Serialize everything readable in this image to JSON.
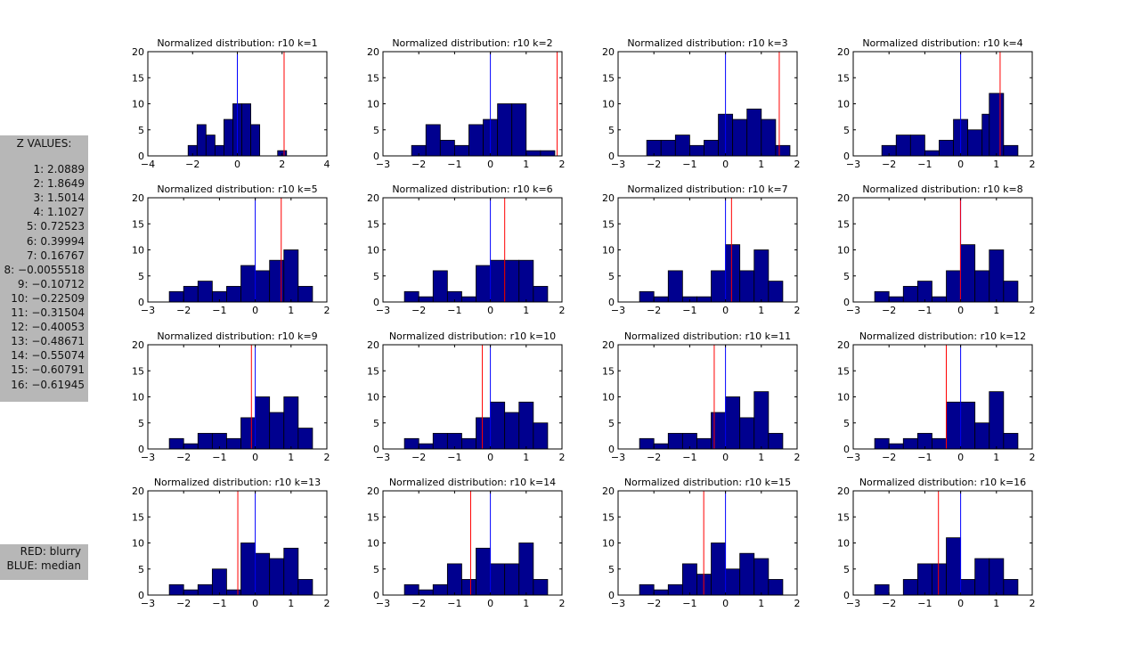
{
  "z_panel": {
    "title": "Z VALUES:",
    "items": [
      "1: 2.0889",
      "2: 1.8649",
      "3: 1.5014",
      "4: 1.1027",
      "5: 0.72523",
      "6: 0.39994",
      "7: 0.16767",
      "8: −0.0055518",
      "9: −0.10712",
      "10: −0.22509",
      "11: −0.31504",
      "12: −0.40053",
      "13: −0.48671",
      "14: −0.55074",
      "15: −0.60791",
      "16: −0.61945"
    ]
  },
  "legend": {
    "red": "RED: blurry",
    "blue": "BLUE: median"
  },
  "colors": {
    "bar": "#00008f",
    "blurry": "#ff0000",
    "median": "#0000ff",
    "axis": "#000000"
  },
  "chart_data": [
    {
      "type": "bar",
      "title": "Normalized distribution: r10 k=1",
      "xlim": [
        -4,
        4
      ],
      "ylim": [
        0,
        20
      ],
      "xticks": [
        -4,
        -2,
        0,
        2,
        4
      ],
      "yticks": [
        0,
        5,
        10,
        15,
        20
      ],
      "bin_width": 0.4,
      "bins": [
        {
          "x": -2.2,
          "y": 2
        },
        {
          "x": -1.8,
          "y": 6
        },
        {
          "x": -1.4,
          "y": 4
        },
        {
          "x": -1.0,
          "y": 2
        },
        {
          "x": -0.6,
          "y": 7
        },
        {
          "x": -0.2,
          "y": 10
        },
        {
          "x": 0.2,
          "y": 10
        },
        {
          "x": 0.6,
          "y": 6
        },
        {
          "x": 1.8,
          "y": 1
        }
      ],
      "blurry": 2.0889,
      "median": 0
    },
    {
      "type": "bar",
      "title": "Normalized distribution: r10 k=2",
      "xlim": [
        -3,
        2
      ],
      "ylim": [
        0,
        20
      ],
      "xticks": [
        -3,
        -2,
        -1,
        0,
        1,
        2
      ],
      "yticks": [
        0,
        5,
        10,
        15,
        20
      ],
      "bin_width": 0.4,
      "bins": [
        {
          "x": -2.2,
          "y": 2
        },
        {
          "x": -1.8,
          "y": 6
        },
        {
          "x": -1.4,
          "y": 3
        },
        {
          "x": -1.0,
          "y": 2
        },
        {
          "x": -0.6,
          "y": 6
        },
        {
          "x": -0.2,
          "y": 7
        },
        {
          "x": 0.2,
          "y": 10
        },
        {
          "x": 0.6,
          "y": 10
        },
        {
          "x": 1.0,
          "y": 1
        },
        {
          "x": 1.4,
          "y": 1
        }
      ],
      "blurry": 1.8649,
      "median": 0
    },
    {
      "type": "bar",
      "title": "Normalized distribution: r10 k=3",
      "xlim": [
        -3,
        2
      ],
      "ylim": [
        0,
        20
      ],
      "xticks": [
        -3,
        -2,
        -1,
        0,
        1,
        2
      ],
      "yticks": [
        0,
        5,
        10,
        15,
        20
      ],
      "bin_width": 0.4,
      "bins": [
        {
          "x": -2.2,
          "y": 3
        },
        {
          "x": -1.8,
          "y": 3
        },
        {
          "x": -1.4,
          "y": 4
        },
        {
          "x": -1.0,
          "y": 2
        },
        {
          "x": -0.6,
          "y": 3
        },
        {
          "x": -0.2,
          "y": 8
        },
        {
          "x": 0.2,
          "y": 7
        },
        {
          "x": 0.6,
          "y": 9
        },
        {
          "x": 1.0,
          "y": 7
        },
        {
          "x": 1.4,
          "y": 2
        }
      ],
      "blurry": 1.5014,
      "median": 0
    },
    {
      "type": "bar",
      "title": "Normalized distribution: r10 k=4",
      "xlim": [
        -3,
        2
      ],
      "ylim": [
        0,
        20
      ],
      "xticks": [
        -3,
        -2,
        -1,
        0,
        1,
        2
      ],
      "yticks": [
        0,
        5,
        10,
        15,
        20
      ],
      "bin_width": 0.4,
      "bins": [
        {
          "x": -2.2,
          "y": 2
        },
        {
          "x": -1.8,
          "y": 4
        },
        {
          "x": -1.4,
          "y": 4
        },
        {
          "x": -1.0,
          "y": 1
        },
        {
          "x": -0.6,
          "y": 3
        },
        {
          "x": -0.2,
          "y": 7
        },
        {
          "x": 0.2,
          "y": 5
        },
        {
          "x": 0.6,
          "y": 8
        },
        {
          "x": 0.8,
          "y": 12,
          "w": 0.4
        },
        {
          "x": 1.2,
          "y": 2
        }
      ],
      "blurry": 1.1027,
      "median": 0
    },
    {
      "type": "bar",
      "title": "Normalized distribution: r10 k=5",
      "xlim": [
        -3,
        2
      ],
      "ylim": [
        0,
        20
      ],
      "xticks": [
        -3,
        -2,
        -1,
        0,
        1,
        2
      ],
      "yticks": [
        0,
        5,
        10,
        15,
        20
      ],
      "bin_width": 0.4,
      "bins": [
        {
          "x": -2.4,
          "y": 2
        },
        {
          "x": -2.0,
          "y": 3
        },
        {
          "x": -1.6,
          "y": 4
        },
        {
          "x": -1.2,
          "y": 2
        },
        {
          "x": -0.8,
          "y": 3
        },
        {
          "x": -0.4,
          "y": 7
        },
        {
          "x": 0.0,
          "y": 6
        },
        {
          "x": 0.4,
          "y": 8
        },
        {
          "x": 0.8,
          "y": 10
        },
        {
          "x": 1.2,
          "y": 3
        }
      ],
      "blurry": 0.72523,
      "median": 0
    },
    {
      "type": "bar",
      "title": "Normalized distribution: r10 k=6",
      "xlim": [
        -3,
        2
      ],
      "ylim": [
        0,
        20
      ],
      "xticks": [
        -3,
        -2,
        -1,
        0,
        1,
        2
      ],
      "yticks": [
        0,
        5,
        10,
        15,
        20
      ],
      "bin_width": 0.4,
      "bins": [
        {
          "x": -2.4,
          "y": 2
        },
        {
          "x": -2.0,
          "y": 1
        },
        {
          "x": -1.6,
          "y": 6
        },
        {
          "x": -1.2,
          "y": 2
        },
        {
          "x": -0.8,
          "y": 1
        },
        {
          "x": -0.4,
          "y": 7
        },
        {
          "x": 0.0,
          "y": 8
        },
        {
          "x": 0.4,
          "y": 8
        },
        {
          "x": 0.8,
          "y": 8
        },
        {
          "x": 1.2,
          "y": 3
        }
      ],
      "blurry": 0.39994,
      "median": 0
    },
    {
      "type": "bar",
      "title": "Normalized distribution: r10 k=7",
      "xlim": [
        -3,
        2
      ],
      "ylim": [
        0,
        20
      ],
      "xticks": [
        -3,
        -2,
        -1,
        0,
        1,
        2
      ],
      "yticks": [
        0,
        5,
        10,
        15,
        20
      ],
      "bin_width": 0.4,
      "bins": [
        {
          "x": -2.4,
          "y": 2
        },
        {
          "x": -2.0,
          "y": 1
        },
        {
          "x": -1.6,
          "y": 6
        },
        {
          "x": -1.2,
          "y": 1
        },
        {
          "x": -0.8,
          "y": 1
        },
        {
          "x": -0.4,
          "y": 6
        },
        {
          "x": 0.0,
          "y": 11
        },
        {
          "x": 0.4,
          "y": 6
        },
        {
          "x": 0.8,
          "y": 10
        },
        {
          "x": 1.2,
          "y": 4
        }
      ],
      "blurry": 0.16767,
      "median": 0
    },
    {
      "type": "bar",
      "title": "Normalized distribution: r10 k=8",
      "xlim": [
        -3,
        2
      ],
      "ylim": [
        0,
        20
      ],
      "xticks": [
        -3,
        -2,
        -1,
        0,
        1,
        2
      ],
      "yticks": [
        0,
        5,
        10,
        15,
        20
      ],
      "bin_width": 0.4,
      "bins": [
        {
          "x": -2.4,
          "y": 2
        },
        {
          "x": -2.0,
          "y": 1
        },
        {
          "x": -1.6,
          "y": 3
        },
        {
          "x": -1.2,
          "y": 4
        },
        {
          "x": -0.8,
          "y": 1
        },
        {
          "x": -0.4,
          "y": 6
        },
        {
          "x": 0.0,
          "y": 11
        },
        {
          "x": 0.4,
          "y": 6
        },
        {
          "x": 0.8,
          "y": 10
        },
        {
          "x": 1.2,
          "y": 4
        }
      ],
      "blurry": -0.0055518,
      "median": 0
    },
    {
      "type": "bar",
      "title": "Normalized distribution: r10 k=9",
      "xlim": [
        -3,
        2
      ],
      "ylim": [
        0,
        20
      ],
      "xticks": [
        -3,
        -2,
        -1,
        0,
        1,
        2
      ],
      "yticks": [
        0,
        5,
        10,
        15,
        20
      ],
      "bin_width": 0.4,
      "bins": [
        {
          "x": -2.4,
          "y": 2
        },
        {
          "x": -2.0,
          "y": 1
        },
        {
          "x": -1.6,
          "y": 3
        },
        {
          "x": -1.2,
          "y": 3
        },
        {
          "x": -0.8,
          "y": 2
        },
        {
          "x": -0.4,
          "y": 6
        },
        {
          "x": 0.0,
          "y": 10
        },
        {
          "x": 0.4,
          "y": 7
        },
        {
          "x": 0.8,
          "y": 10
        },
        {
          "x": 1.2,
          "y": 4
        }
      ],
      "blurry": -0.10712,
      "median": 0
    },
    {
      "type": "bar",
      "title": "Normalized distribution: r10 k=10",
      "xlim": [
        -3,
        2
      ],
      "ylim": [
        0,
        20
      ],
      "xticks": [
        -3,
        -2,
        -1,
        0,
        1,
        2
      ],
      "yticks": [
        0,
        5,
        10,
        15,
        20
      ],
      "bin_width": 0.4,
      "bins": [
        {
          "x": -2.4,
          "y": 2
        },
        {
          "x": -2.0,
          "y": 1
        },
        {
          "x": -1.6,
          "y": 3
        },
        {
          "x": -1.2,
          "y": 3
        },
        {
          "x": -0.8,
          "y": 2
        },
        {
          "x": -0.4,
          "y": 6
        },
        {
          "x": 0.0,
          "y": 9
        },
        {
          "x": 0.4,
          "y": 7
        },
        {
          "x": 0.8,
          "y": 9
        },
        {
          "x": 1.2,
          "y": 5
        }
      ],
      "blurry": -0.22509,
      "median": 0
    },
    {
      "type": "bar",
      "title": "Normalized distribution: r10 k=11",
      "xlim": [
        -3,
        2
      ],
      "ylim": [
        0,
        20
      ],
      "xticks": [
        -3,
        -2,
        -1,
        0,
        1,
        2
      ],
      "yticks": [
        0,
        5,
        10,
        15,
        20
      ],
      "bin_width": 0.4,
      "bins": [
        {
          "x": -2.4,
          "y": 2
        },
        {
          "x": -2.0,
          "y": 1
        },
        {
          "x": -1.6,
          "y": 3
        },
        {
          "x": -1.2,
          "y": 3
        },
        {
          "x": -0.8,
          "y": 2
        },
        {
          "x": -0.4,
          "y": 7
        },
        {
          "x": 0.0,
          "y": 10
        },
        {
          "x": 0.4,
          "y": 6
        },
        {
          "x": 0.8,
          "y": 11
        },
        {
          "x": 1.2,
          "y": 3
        }
      ],
      "blurry": -0.31504,
      "median": 0
    },
    {
      "type": "bar",
      "title": "Normalized distribution: r10 k=12",
      "xlim": [
        -3,
        2
      ],
      "ylim": [
        0,
        20
      ],
      "xticks": [
        -3,
        -2,
        -1,
        0,
        1,
        2
      ],
      "yticks": [
        0,
        5,
        10,
        15,
        20
      ],
      "bin_width": 0.4,
      "bins": [
        {
          "x": -2.4,
          "y": 2
        },
        {
          "x": -2.0,
          "y": 1
        },
        {
          "x": -1.6,
          "y": 2
        },
        {
          "x": -1.2,
          "y": 3
        },
        {
          "x": -0.8,
          "y": 2
        },
        {
          "x": -0.4,
          "y": 9
        },
        {
          "x": 0.0,
          "y": 9
        },
        {
          "x": 0.4,
          "y": 5
        },
        {
          "x": 0.8,
          "y": 11
        },
        {
          "x": 1.2,
          "y": 3
        }
      ],
      "blurry": -0.40053,
      "median": 0
    },
    {
      "type": "bar",
      "title": "Normalized distribution: r10 k=13",
      "xlim": [
        -3,
        2
      ],
      "ylim": [
        0,
        20
      ],
      "xticks": [
        -3,
        -2,
        -1,
        0,
        1,
        2
      ],
      "yticks": [
        0,
        5,
        10,
        15,
        20
      ],
      "bin_width": 0.4,
      "bins": [
        {
          "x": -2.4,
          "y": 2
        },
        {
          "x": -2.0,
          "y": 1
        },
        {
          "x": -1.6,
          "y": 2
        },
        {
          "x": -1.2,
          "y": 5
        },
        {
          "x": -0.8,
          "y": 1
        },
        {
          "x": -0.4,
          "y": 10
        },
        {
          "x": 0.0,
          "y": 8
        },
        {
          "x": 0.4,
          "y": 7
        },
        {
          "x": 0.8,
          "y": 9
        },
        {
          "x": 1.2,
          "y": 3
        }
      ],
      "blurry": -0.48671,
      "median": 0
    },
    {
      "type": "bar",
      "title": "Normalized distribution: r10 k=14",
      "xlim": [
        -3,
        2
      ],
      "ylim": [
        0,
        20
      ],
      "xticks": [
        -3,
        -2,
        -1,
        0,
        1,
        2
      ],
      "yticks": [
        0,
        5,
        10,
        15,
        20
      ],
      "bin_width": 0.4,
      "bins": [
        {
          "x": -2.4,
          "y": 2
        },
        {
          "x": -2.0,
          "y": 1
        },
        {
          "x": -1.6,
          "y": 2
        },
        {
          "x": -1.2,
          "y": 6
        },
        {
          "x": -0.8,
          "y": 3
        },
        {
          "x": -0.4,
          "y": 9
        },
        {
          "x": 0.0,
          "y": 6
        },
        {
          "x": 0.4,
          "y": 6
        },
        {
          "x": 0.8,
          "y": 10
        },
        {
          "x": 1.2,
          "y": 3
        }
      ],
      "blurry": -0.55074,
      "median": 0
    },
    {
      "type": "bar",
      "title": "Normalized distribution: r10 k=15",
      "xlim": [
        -3,
        2
      ],
      "ylim": [
        0,
        20
      ],
      "xticks": [
        -3,
        -2,
        -1,
        0,
        1,
        2
      ],
      "yticks": [
        0,
        5,
        10,
        15,
        20
      ],
      "bin_width": 0.4,
      "bins": [
        {
          "x": -2.4,
          "y": 2
        },
        {
          "x": -2.0,
          "y": 1
        },
        {
          "x": -1.6,
          "y": 2
        },
        {
          "x": -1.2,
          "y": 6
        },
        {
          "x": -0.8,
          "y": 4
        },
        {
          "x": -0.4,
          "y": 10
        },
        {
          "x": 0.0,
          "y": 5
        },
        {
          "x": 0.4,
          "y": 8
        },
        {
          "x": 0.8,
          "y": 7
        },
        {
          "x": 1.2,
          "y": 3
        }
      ],
      "blurry": -0.60791,
      "median": 0
    },
    {
      "type": "bar",
      "title": "Normalized distribution: r10 k=16",
      "xlim": [
        -3,
        2
      ],
      "ylim": [
        0,
        20
      ],
      "xticks": [
        -3,
        -2,
        -1,
        0,
        1,
        2
      ],
      "yticks": [
        0,
        5,
        10,
        15,
        20
      ],
      "bin_width": 0.4,
      "bins": [
        {
          "x": -2.4,
          "y": 2
        },
        {
          "x": -2.0,
          "y": 0
        },
        {
          "x": -1.6,
          "y": 3
        },
        {
          "x": -1.2,
          "y": 6
        },
        {
          "x": -0.8,
          "y": 6
        },
        {
          "x": -0.4,
          "y": 11
        },
        {
          "x": 0.0,
          "y": 3
        },
        {
          "x": 0.4,
          "y": 7
        },
        {
          "x": 0.8,
          "y": 7
        },
        {
          "x": 1.2,
          "y": 3
        }
      ],
      "blurry": -0.61945,
      "median": 0
    }
  ]
}
